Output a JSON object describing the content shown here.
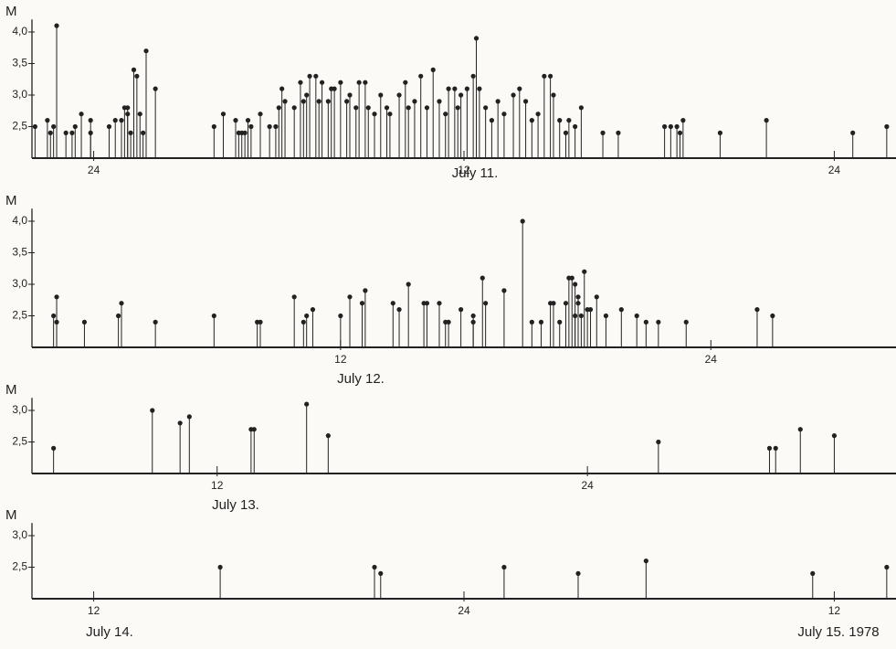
{
  "chart_data": [
    {
      "type": "stem",
      "y_label": "M",
      "color": "#222222",
      "annotations": [
        "July 11."
      ],
      "xlim": [
        -2,
        26
      ],
      "xticks": [
        {
          "value": 0,
          "label": "24"
        },
        12,
        24
      ],
      "ylim": [
        2,
        4.2
      ],
      "yticks": [
        {
          "value": 2.5,
          "label": "2,5"
        },
        {
          "value": 3,
          "label": "3,0"
        },
        {
          "value": 3.5,
          "label": "3,5"
        },
        {
          "value": 4,
          "label": "4,0"
        }
      ],
      "x": [
        -1.9,
        -1.5,
        -1.4,
        -1.3,
        -1.2,
        -0.9,
        -0.7,
        -0.6,
        -0.4,
        -0.1,
        -0.1,
        0.5,
        0.7,
        0.9,
        1.0,
        1.1,
        1.1,
        1.2,
        1.3,
        1.4,
        1.5,
        1.6,
        1.7,
        2.0,
        3.9,
        4.2,
        4.6,
        4.7,
        4.8,
        4.9,
        5.0,
        5.1,
        5.4,
        5.7,
        5.9,
        6.0,
        6.1,
        6.2,
        6.5,
        6.7,
        6.8,
        6.9,
        7.0,
        7.2,
        7.3,
        7.4,
        7.6,
        7.7,
        7.8,
        8.0,
        8.2,
        8.3,
        8.5,
        8.6,
        8.8,
        8.9,
        9.1,
        9.3,
        9.5,
        9.6,
        9.9,
        10.1,
        10.2,
        10.4,
        10.6,
        10.8,
        11.0,
        11.2,
        11.4,
        11.5,
        11.7,
        11.8,
        11.9,
        12.1,
        12.3,
        12.4,
        12.5,
        12.7,
        12.9,
        13.1,
        13.3,
        13.6,
        13.8,
        14.0,
        14.2,
        14.4,
        14.6,
        14.8,
        14.9,
        15.1,
        15.3,
        15.4,
        15.6,
        15.8,
        16.5,
        17.0,
        18.5,
        18.7,
        18.9,
        19.0,
        19.1,
        20.3,
        21.8,
        24.6,
        25.7
      ],
      "values": [
        2.5,
        2.6,
        2.4,
        2.5,
        4.1,
        2.4,
        2.4,
        2.5,
        2.7,
        2.6,
        2.4,
        2.5,
        2.6,
        2.6,
        2.8,
        2.8,
        2.7,
        2.4,
        3.4,
        3.3,
        2.7,
        2.4,
        3.7,
        3.1,
        2.5,
        2.7,
        2.6,
        2.4,
        2.4,
        2.4,
        2.6,
        2.5,
        2.7,
        2.5,
        2.5,
        2.8,
        3.1,
        2.9,
        2.8,
        3.2,
        2.9,
        3.0,
        3.3,
        3.3,
        2.9,
        3.2,
        2.9,
        3.1,
        3.1,
        3.2,
        2.9,
        3.0,
        2.8,
        3.2,
        3.2,
        2.8,
        2.7,
        3.0,
        2.8,
        2.7,
        3.0,
        3.2,
        2.8,
        2.9,
        3.3,
        2.8,
        3.4,
        2.9,
        2.7,
        3.1,
        3.1,
        2.8,
        3.0,
        3.1,
        3.3,
        3.9,
        3.1,
        2.8,
        2.6,
        2.9,
        2.7,
        3.0,
        3.1,
        2.9,
        2.6,
        2.7,
        3.3,
        3.3,
        3.0,
        2.6,
        2.4,
        2.6,
        2.5,
        2.8,
        2.4,
        2.4,
        2.5,
        2.5,
        2.5,
        2.4,
        2.6,
        2.4,
        2.6,
        2.4,
        2.5
      ]
    },
    {
      "type": "stem",
      "y_label": "M",
      "color": "#222222",
      "annotations": [
        "July 12."
      ],
      "xlim": [
        2,
        30
      ],
      "xticks": [
        12,
        24
      ],
      "ylim": [
        2,
        4.2
      ],
      "yticks": [
        {
          "value": 2.5,
          "label": "2,5"
        },
        {
          "value": 3,
          "label": "3,0"
        },
        {
          "value": 3.5,
          "label": "3,5"
        },
        {
          "value": 4,
          "label": "4,0"
        }
      ],
      "x": [
        2.7,
        2.8,
        2.8,
        3.7,
        4.8,
        4.9,
        6.0,
        7.9,
        9.3,
        9.4,
        10.5,
        10.8,
        10.9,
        11.1,
        12.0,
        12.3,
        12.7,
        12.8,
        13.7,
        13.9,
        14.2,
        14.7,
        14.8,
        15.2,
        15.4,
        15.5,
        15.9,
        16.3,
        16.3,
        16.6,
        16.7,
        17.3,
        17.9,
        18.2,
        18.5,
        18.8,
        18.9,
        19.1,
        19.3,
        19.4,
        19.5,
        19.6,
        19.6,
        19.7,
        19.7,
        19.8,
        19.9,
        20.0,
        20.1,
        20.3,
        20.6,
        21.1,
        21.6,
        21.9,
        22.3,
        23.2,
        25.5,
        26.0
      ],
      "values": [
        2.5,
        2.4,
        2.8,
        2.4,
        2.5,
        2.7,
        2.4,
        2.5,
        2.4,
        2.4,
        2.8,
        2.4,
        2.5,
        2.6,
        2.5,
        2.8,
        2.7,
        2.9,
        2.7,
        2.6,
        3.0,
        2.7,
        2.7,
        2.7,
        2.4,
        2.4,
        2.6,
        2.5,
        2.4,
        3.1,
        2.7,
        2.9,
        4.0,
        2.4,
        2.4,
        2.7,
        2.7,
        2.4,
        2.7,
        3.1,
        3.1,
        2.5,
        3.0,
        2.8,
        2.7,
        2.5,
        3.2,
        2.6,
        2.6,
        2.8,
        2.5,
        2.6,
        2.5,
        2.4,
        2.4,
        2.4,
        2.6,
        2.5
      ]
    },
    {
      "type": "stem",
      "y_label": "M",
      "color": "#222222",
      "annotations": [
        "July 13."
      ],
      "xlim": [
        6,
        34
      ],
      "xticks": [
        12,
        24
      ],
      "ylim": [
        2,
        3.2
      ],
      "yticks": [
        {
          "value": 2.5,
          "label": "2,5"
        },
        {
          "value": 3,
          "label": "3,0"
        }
      ],
      "x": [
        6.7,
        9.9,
        10.8,
        11.1,
        13.1,
        13.2,
        14.9,
        15.6,
        26.3,
        29.9,
        30.1,
        30.9,
        32.0
      ],
      "values": [
        2.4,
        3.0,
        2.8,
        2.9,
        2.7,
        2.7,
        3.1,
        2.6,
        2.5,
        2.4,
        2.4,
        2.7,
        2.6
      ]
    },
    {
      "type": "stem",
      "y_label": "M",
      "color": "#222222",
      "annotations": [
        "July 14.",
        "July 15. 1978"
      ],
      "xlim": [
        10,
        38
      ],
      "xticks": [
        12,
        24,
        {
          "value": 36,
          "label": "12"
        }
      ],
      "ylim": [
        2,
        3.2
      ],
      "yticks": [
        {
          "value": 2.5,
          "label": "2,5"
        },
        {
          "value": 3,
          "label": "3,0"
        }
      ],
      "x": [
        16.1,
        21.1,
        21.3,
        25.3,
        27.7,
        29.9,
        35.3,
        37.7
      ],
      "values": [
        2.5,
        2.5,
        2.4,
        2.5,
        2.4,
        2.6,
        2.4,
        2.5
      ]
    }
  ]
}
